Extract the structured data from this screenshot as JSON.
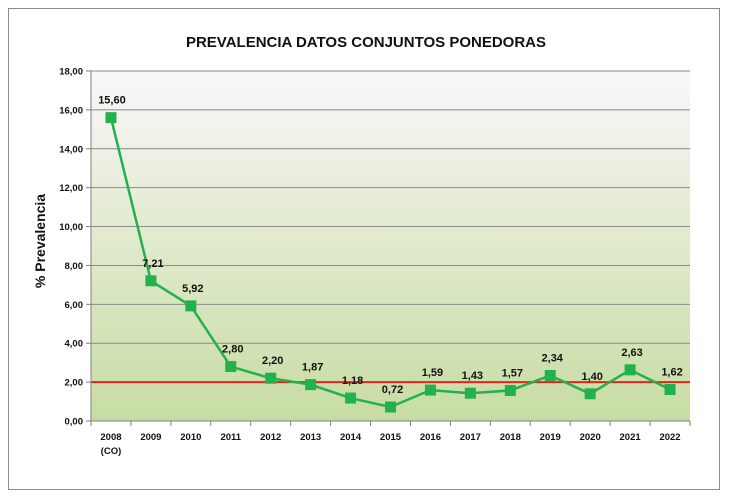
{
  "chart_data": {
    "type": "line",
    "title": "PREVALENCIA DATOS CONJUNTOS PONEDORAS",
    "xlabel": "",
    "ylabel": "% Prevalencia",
    "categories": [
      "2008",
      "2009",
      "2010",
      "2011",
      "2012",
      "2013",
      "2014",
      "2015",
      "2016",
      "2017",
      "2018",
      "2019",
      "2020",
      "2021",
      "2022"
    ],
    "category_sublabels": [
      "(CO)",
      "",
      "",
      "",
      "",
      "",
      "",
      "",
      "",
      "",
      "",
      "",
      "",
      "",
      ""
    ],
    "series": [
      {
        "name": "Prevalencia",
        "color": "#22b14c",
        "values": [
          15.6,
          7.21,
          5.92,
          2.8,
          2.2,
          1.87,
          1.18,
          0.72,
          1.59,
          1.43,
          1.57,
          2.34,
          1.4,
          2.63,
          1.62
        ],
        "labels": [
          "15,60",
          "7,21",
          "5,92",
          "2,80",
          "2,20",
          "1,87",
          "1,18",
          "0,72",
          "1,59",
          "1,43",
          "1,57",
          "2,34",
          "1,40",
          "2,63",
          "1,62"
        ]
      }
    ],
    "reference_line": {
      "value": 2.0,
      "color": "#e8221b"
    },
    "ylim": [
      0,
      18
    ],
    "yticks": [
      0,
      2,
      4,
      6,
      8,
      10,
      12,
      14,
      16,
      18
    ],
    "ytick_labels": [
      "0,00",
      "2,00",
      "4,00",
      "6,00",
      "8,00",
      "10,00",
      "12,00",
      "14,00",
      "16,00",
      "18,00"
    ],
    "grid": true,
    "legend": "none"
  }
}
